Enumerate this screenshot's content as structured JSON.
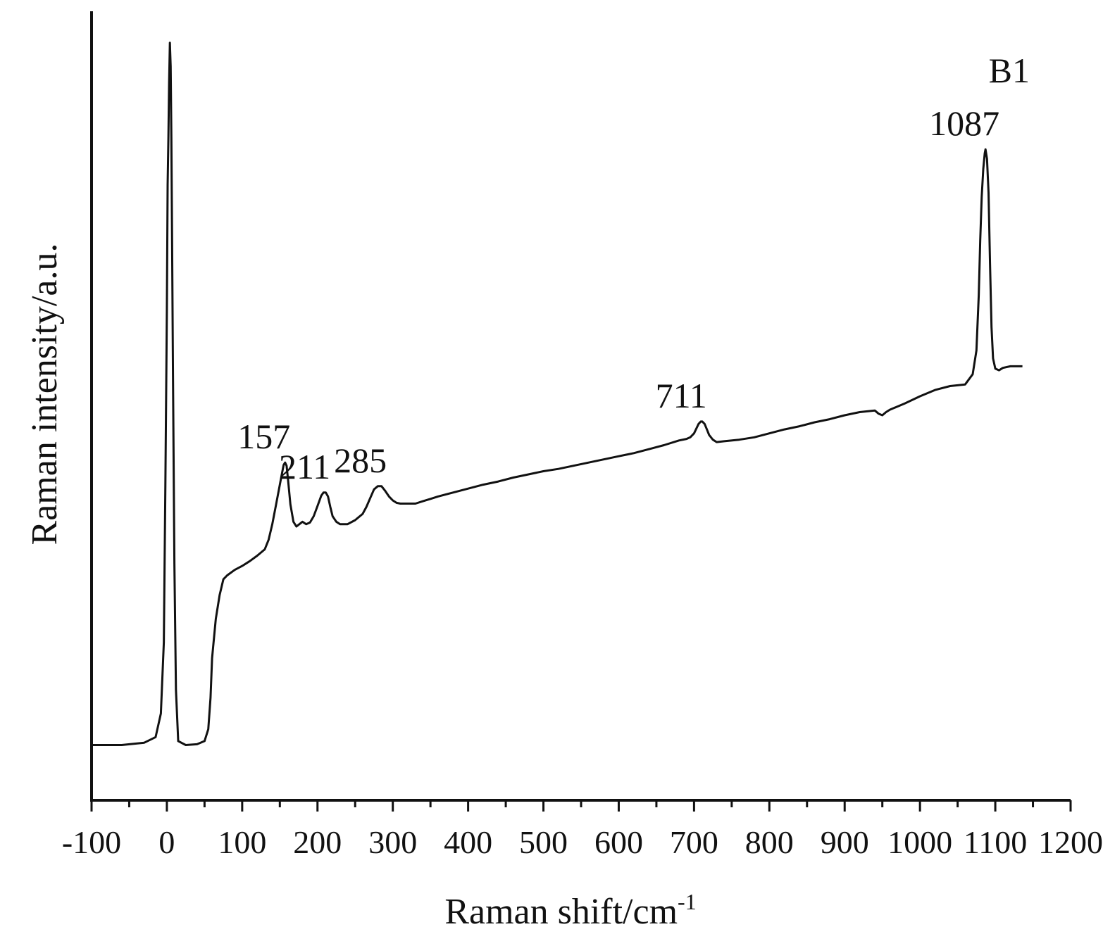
{
  "chart_data": {
    "type": "line",
    "panel_label": "B1",
    "xlabel": "Raman shift/cm",
    "xlabel_superscript": "-1",
    "ylabel": "Raman intensity/a.u.",
    "xlim": [
      -100,
      1200
    ],
    "ylim": [
      0,
      1
    ],
    "x_ticks": [
      -100,
      0,
      100,
      200,
      300,
      400,
      500,
      600,
      700,
      800,
      900,
      1000,
      1100,
      1200
    ],
    "x_tick_labels": [
      "-100",
      "0",
      "100",
      "200",
      "300",
      "400",
      "500",
      "600",
      "700",
      "800",
      "900",
      "1000",
      "1100",
      "1200"
    ],
    "y_ticks_shown": false,
    "grid": false,
    "line_color": "#111111",
    "peak_labels": [
      {
        "x": 157,
        "label": "157"
      },
      {
        "x": 211,
        "label": "211"
      },
      {
        "x": 285,
        "label": "285"
      },
      {
        "x": 711,
        "label": "711"
      },
      {
        "x": 1087,
        "label": "1087"
      }
    ],
    "series": [
      {
        "x": [
          -100,
          -60,
          -30,
          -15,
          -8,
          -4,
          -2,
          0,
          1,
          2,
          3,
          4,
          5,
          6,
          7,
          8,
          10,
          12,
          15,
          25,
          40,
          50,
          55,
          58,
          60,
          62,
          65,
          70,
          75,
          80,
          90,
          100,
          110,
          120,
          130,
          135,
          140,
          145,
          150,
          153,
          155,
          157,
          159,
          161,
          164,
          168,
          172,
          176,
          180,
          185,
          190,
          195,
          200,
          205,
          208,
          211,
          214,
          217,
          220,
          225,
          230,
          240,
          250,
          260,
          265,
          270,
          275,
          280,
          285,
          290,
          295,
          300,
          305,
          310,
          320,
          330,
          340,
          350,
          360,
          380,
          400,
          420,
          440,
          460,
          480,
          500,
          520,
          540,
          560,
          580,
          600,
          620,
          640,
          660,
          680,
          690,
          695,
          700,
          703,
          706,
          709,
          711,
          714,
          717,
          720,
          725,
          730,
          740,
          760,
          780,
          800,
          820,
          840,
          860,
          880,
          900,
          920,
          940,
          945,
          950,
          955,
          960,
          980,
          1000,
          1020,
          1040,
          1060,
          1070,
          1075,
          1078,
          1080,
          1082,
          1084,
          1086,
          1087,
          1089,
          1091,
          1093,
          1095,
          1097,
          1100,
          1105,
          1110,
          1120,
          1130,
          1136
        ],
        "y": [
          0.07,
          0.07,
          0.073,
          0.08,
          0.11,
          0.2,
          0.4,
          0.62,
          0.78,
          0.84,
          0.91,
          0.96,
          0.93,
          0.84,
          0.7,
          0.55,
          0.3,
          0.14,
          0.075,
          0.07,
          0.071,
          0.075,
          0.09,
          0.13,
          0.18,
          0.2,
          0.23,
          0.26,
          0.28,
          0.285,
          0.292,
          0.297,
          0.303,
          0.31,
          0.318,
          0.33,
          0.35,
          0.375,
          0.4,
          0.415,
          0.425,
          0.428,
          0.424,
          0.405,
          0.375,
          0.353,
          0.347,
          0.35,
          0.353,
          0.35,
          0.352,
          0.36,
          0.373,
          0.386,
          0.39,
          0.39,
          0.385,
          0.372,
          0.36,
          0.353,
          0.35,
          0.35,
          0.355,
          0.363,
          0.372,
          0.383,
          0.394,
          0.398,
          0.398,
          0.392,
          0.385,
          0.38,
          0.377,
          0.376,
          0.376,
          0.376,
          0.379,
          0.382,
          0.385,
          0.39,
          0.395,
          0.4,
          0.404,
          0.409,
          0.413,
          0.417,
          0.42,
          0.424,
          0.428,
          0.432,
          0.436,
          0.44,
          0.445,
          0.45,
          0.456,
          0.458,
          0.46,
          0.465,
          0.471,
          0.477,
          0.48,
          0.48,
          0.477,
          0.47,
          0.463,
          0.457,
          0.454,
          0.455,
          0.457,
          0.46,
          0.465,
          0.47,
          0.474,
          0.479,
          0.483,
          0.488,
          0.492,
          0.494,
          0.49,
          0.488,
          0.492,
          0.495,
          0.503,
          0.512,
          0.52,
          0.525,
          0.527,
          0.54,
          0.57,
          0.64,
          0.71,
          0.765,
          0.8,
          0.82,
          0.825,
          0.813,
          0.77,
          0.68,
          0.6,
          0.56,
          0.547,
          0.545,
          0.548,
          0.55,
          0.55,
          0.55
        ]
      }
    ]
  }
}
